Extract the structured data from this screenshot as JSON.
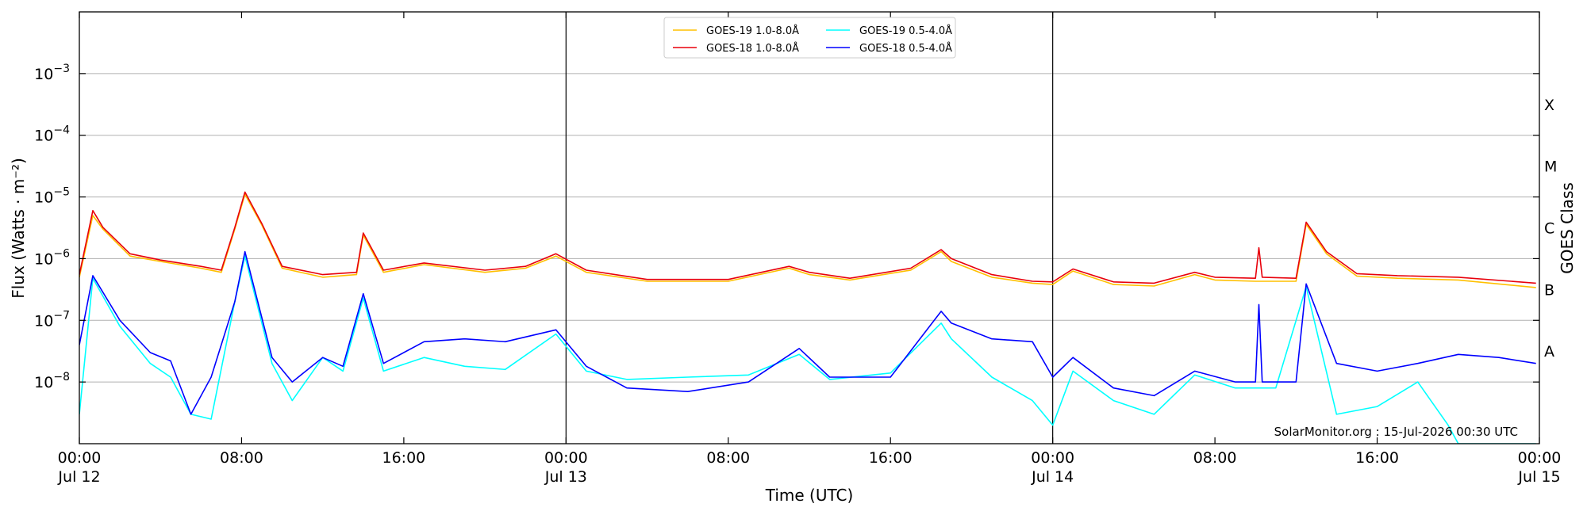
{
  "chart_data": {
    "type": "line",
    "title": "",
    "xlabel": "Time (UTC)",
    "ylabel": "Flux (Watts · m⁻²)",
    "y2label": "GOES Class",
    "yscale": "log",
    "ylim": [
      1e-09,
      0.01
    ],
    "xlim": [
      "2026-07-12T00:00",
      "2026-07-15T00:00"
    ],
    "grid": "horizontal",
    "legend_position": "top-center",
    "x_ticks": [
      {
        "time": "2026-07-12T00:00",
        "label": "00:00",
        "sublabel": "Jul 12"
      },
      {
        "time": "2026-07-12T08:00",
        "label": "08:00",
        "sublabel": ""
      },
      {
        "time": "2026-07-12T16:00",
        "label": "16:00",
        "sublabel": ""
      },
      {
        "time": "2026-07-13T00:00",
        "label": "00:00",
        "sublabel": "Jul 13"
      },
      {
        "time": "2026-07-13T08:00",
        "label": "08:00",
        "sublabel": ""
      },
      {
        "time": "2026-07-13T16:00",
        "label": "16:00",
        "sublabel": ""
      },
      {
        "time": "2026-07-14T00:00",
        "label": "00:00",
        "sublabel": "Jul 14"
      },
      {
        "time": "2026-07-14T08:00",
        "label": "08:00",
        "sublabel": ""
      },
      {
        "time": "2026-07-14T16:00",
        "label": "16:00",
        "sublabel": ""
      },
      {
        "time": "2026-07-15T00:00",
        "label": "00:00",
        "sublabel": "Jul 15"
      }
    ],
    "day_boundaries": [
      "2026-07-13T00:00",
      "2026-07-14T00:00"
    ],
    "y_ticks": [
      {
        "value": 1e-08,
        "base": "10",
        "exp": "−8"
      },
      {
        "value": 1e-07,
        "base": "10",
        "exp": "−7"
      },
      {
        "value": 1e-06,
        "base": "10",
        "exp": "−6"
      },
      {
        "value": 1e-05,
        "base": "10",
        "exp": "−5"
      },
      {
        "value": 0.0001,
        "base": "10",
        "exp": "−4"
      },
      {
        "value": 0.001,
        "base": "10",
        "exp": "−3"
      }
    ],
    "goes_classes": [
      {
        "label": "A",
        "value": 1e-08
      },
      {
        "label": "B",
        "value": 1e-07
      },
      {
        "label": "C",
        "value": 1e-06
      },
      {
        "label": "M",
        "value": 1e-05
      },
      {
        "label": "X",
        "value": 0.0001
      }
    ],
    "credit": "SolarMonitor.org : 15-Jul-2026 00:30 UTC",
    "series": [
      {
        "name": "GOES-19 1.0-8.0Å",
        "color": "#ffc000",
        "x": [
          "2026-07-12T00:00",
          "2026-07-12T00:40",
          "2026-07-12T01:10",
          "2026-07-12T02:30",
          "2026-07-12T04:00",
          "2026-07-12T06:00",
          "2026-07-12T07:00",
          "2026-07-12T07:40",
          "2026-07-12T08:10",
          "2026-07-12T09:00",
          "2026-07-12T10:00",
          "2026-07-12T12:00",
          "2026-07-12T13:40",
          "2026-07-12T14:00",
          "2026-07-12T15:00",
          "2026-07-12T17:00",
          "2026-07-12T20:00",
          "2026-07-12T22:00",
          "2026-07-12T23:30",
          "2026-07-13T01:00",
          "2026-07-13T04:00",
          "2026-07-13T08:00",
          "2026-07-13T11:00",
          "2026-07-13T12:00",
          "2026-07-13T14:00",
          "2026-07-13T17:00",
          "2026-07-13T18:30",
          "2026-07-13T19:00",
          "2026-07-13T21:00",
          "2026-07-13T23:00",
          "2026-07-14T00:00",
          "2026-07-14T01:00",
          "2026-07-14T03:00",
          "2026-07-14T05:00",
          "2026-07-14T07:00",
          "2026-07-14T08:00",
          "2026-07-14T10:00",
          "2026-07-14T12:00",
          "2026-07-14T12:30",
          "2026-07-14T13:30",
          "2026-07-14T15:00",
          "2026-07-14T17:00",
          "2026-07-14T20:00",
          "2026-07-14T23:50"
        ],
        "y": [
          5e-07,
          5e-06,
          3e-06,
          1.1e-06,
          9e-07,
          7e-07,
          6e-07,
          3e-06,
          1.1e-05,
          3.5e-06,
          7e-07,
          5e-07,
          5.5e-07,
          2.4e-06,
          6e-07,
          8e-07,
          6e-07,
          7e-07,
          1.1e-06,
          6e-07,
          4.3e-07,
          4.3e-07,
          7e-07,
          5.5e-07,
          4.5e-07,
          6.5e-07,
          1.3e-06,
          9e-07,
          5e-07,
          4e-07,
          3.8e-07,
          6.3e-07,
          3.8e-07,
          3.6e-07,
          5.5e-07,
          4.5e-07,
          4.3e-07,
          4.3e-07,
          3.6e-06,
          1.2e-06,
          5.2e-07,
          4.8e-07,
          4.5e-07,
          3.4e-07
        ]
      },
      {
        "name": "GOES-18 1.0-8.0Å",
        "color": "#e8000b",
        "x": [
          "2026-07-12T00:00",
          "2026-07-12T00:40",
          "2026-07-12T01:10",
          "2026-07-12T02:30",
          "2026-07-12T04:00",
          "2026-07-12T06:00",
          "2026-07-12T07:00",
          "2026-07-12T07:40",
          "2026-07-12T08:10",
          "2026-07-12T09:00",
          "2026-07-12T10:00",
          "2026-07-12T12:00",
          "2026-07-12T13:40",
          "2026-07-12T14:00",
          "2026-07-12T15:00",
          "2026-07-12T17:00",
          "2026-07-12T20:00",
          "2026-07-12T22:00",
          "2026-07-12T23:30",
          "2026-07-13T01:00",
          "2026-07-13T04:00",
          "2026-07-13T08:00",
          "2026-07-13T11:00",
          "2026-07-13T12:00",
          "2026-07-13T14:00",
          "2026-07-13T17:00",
          "2026-07-13T18:30",
          "2026-07-13T19:00",
          "2026-07-13T21:00",
          "2026-07-13T23:00",
          "2026-07-14T00:00",
          "2026-07-14T01:00",
          "2026-07-14T03:00",
          "2026-07-14T05:00",
          "2026-07-14T07:00",
          "2026-07-14T08:00",
          "2026-07-14T10:00",
          "2026-07-14T10:10",
          "2026-07-14T10:20",
          "2026-07-14T12:00",
          "2026-07-14T12:30",
          "2026-07-14T13:30",
          "2026-07-14T15:00",
          "2026-07-14T17:00",
          "2026-07-14T20:00",
          "2026-07-14T23:50"
        ],
        "y": [
          5.5e-07,
          6e-06,
          3.2e-06,
          1.2e-06,
          9.5e-07,
          7.5e-07,
          6.5e-07,
          3.2e-06,
          1.2e-05,
          3.7e-06,
          7.5e-07,
          5.5e-07,
          6e-07,
          2.6e-06,
          6.5e-07,
          8.5e-07,
          6.5e-07,
          7.5e-07,
          1.2e-06,
          6.5e-07,
          4.6e-07,
          4.6e-07,
          7.5e-07,
          6e-07,
          4.8e-07,
          7e-07,
          1.4e-06,
          1e-06,
          5.5e-07,
          4.3e-07,
          4.2e-07,
          6.8e-07,
          4.2e-07,
          4e-07,
          6e-07,
          5e-07,
          4.8e-07,
          1.5e-06,
          5e-07,
          4.8e-07,
          3.9e-06,
          1.3e-06,
          5.7e-07,
          5.3e-07,
          5e-07,
          4e-07
        ]
      },
      {
        "name": "GOES-19 0.5-4.0Å",
        "color": "#00ffff",
        "x": [
          "2026-07-12T00:00",
          "2026-07-12T00:40",
          "2026-07-12T02:00",
          "2026-07-12T03:30",
          "2026-07-12T04:30",
          "2026-07-12T05:30",
          "2026-07-12T06:30",
          "2026-07-12T07:40",
          "2026-07-12T08:10",
          "2026-07-12T09:30",
          "2026-07-12T10:30",
          "2026-07-12T12:00",
          "2026-07-12T13:00",
          "2026-07-12T14:00",
          "2026-07-12T15:00",
          "2026-07-12T17:00",
          "2026-07-12T19:00",
          "2026-07-12T21:00",
          "2026-07-12T23:30",
          "2026-07-13T01:00",
          "2026-07-13T03:00",
          "2026-07-13T06:00",
          "2026-07-13T09:00",
          "2026-07-13T11:30",
          "2026-07-13T13:00",
          "2026-07-13T16:00",
          "2026-07-13T18:30",
          "2026-07-13T19:00",
          "2026-07-13T21:00",
          "2026-07-13T23:00",
          "2026-07-14T00:00",
          "2026-07-14T01:00",
          "2026-07-14T03:00",
          "2026-07-14T05:00",
          "2026-07-14T07:00",
          "2026-07-14T09:00",
          "2026-07-14T11:00",
          "2026-07-14T12:30",
          "2026-07-14T14:00",
          "2026-07-14T16:00",
          "2026-07-14T18:00",
          "2026-07-14T19:30",
          "2026-07-14T20:00",
          "2026-07-14T22:00",
          "2026-07-14T23:50"
        ],
        "y": [
          3e-09,
          4.8e-07,
          8e-08,
          2e-08,
          1.2e-08,
          3e-09,
          2.5e-09,
          2e-07,
          1.1e-06,
          2e-08,
          5e-09,
          2.5e-08,
          1.5e-08,
          2.3e-07,
          1.5e-08,
          2.5e-08,
          1.8e-08,
          1.6e-08,
          6e-08,
          1.5e-08,
          1.1e-08,
          1.2e-08,
          1.3e-08,
          2.8e-08,
          1.1e-08,
          1.4e-08,
          9e-08,
          5e-08,
          1.2e-08,
          5e-09,
          2e-09,
          1.5e-08,
          5e-09,
          3e-09,
          1.3e-08,
          8e-09,
          8e-09,
          3.5e-07,
          3e-09,
          4e-09,
          1e-08,
          2e-09,
          1e-09,
          1e-09,
          1e-09
        ]
      },
      {
        "name": "GOES-18 0.5-4.0Å",
        "color": "#0000ff",
        "x": [
          "2026-07-12T00:00",
          "2026-07-12T00:40",
          "2026-07-12T02:00",
          "2026-07-12T03:30",
          "2026-07-12T04:30",
          "2026-07-12T05:30",
          "2026-07-12T06:30",
          "2026-07-12T07:40",
          "2026-07-12T08:10",
          "2026-07-12T09:30",
          "2026-07-12T10:30",
          "2026-07-12T12:00",
          "2026-07-12T13:00",
          "2026-07-12T14:00",
          "2026-07-12T15:00",
          "2026-07-12T17:00",
          "2026-07-12T19:00",
          "2026-07-12T21:00",
          "2026-07-12T23:30",
          "2026-07-13T01:00",
          "2026-07-13T03:00",
          "2026-07-13T06:00",
          "2026-07-13T09:00",
          "2026-07-13T11:30",
          "2026-07-13T13:00",
          "2026-07-13T16:00",
          "2026-07-13T18:30",
          "2026-07-13T19:00",
          "2026-07-13T21:00",
          "2026-07-13T23:00",
          "2026-07-14T00:00",
          "2026-07-14T01:00",
          "2026-07-14T03:00",
          "2026-07-14T05:00",
          "2026-07-14T07:00",
          "2026-07-14T09:00",
          "2026-07-14T10:00",
          "2026-07-14T10:10",
          "2026-07-14T10:20",
          "2026-07-14T12:00",
          "2026-07-14T12:30",
          "2026-07-14T14:00",
          "2026-07-14T16:00",
          "2026-07-14T18:00",
          "2026-07-14T20:00",
          "2026-07-14T22:00",
          "2026-07-14T23:50"
        ],
        "y": [
          4e-08,
          5.3e-07,
          1e-07,
          3e-08,
          2.2e-08,
          3e-09,
          1.2e-08,
          2e-07,
          1.3e-06,
          2.5e-08,
          1e-08,
          2.5e-08,
          1.8e-08,
          2.7e-07,
          2e-08,
          4.5e-08,
          5e-08,
          4.5e-08,
          7e-08,
          1.8e-08,
          8e-09,
          7e-09,
          1e-08,
          3.5e-08,
          1.2e-08,
          1.2e-08,
          1.4e-07,
          9e-08,
          5e-08,
          4.5e-08,
          1.2e-08,
          2.5e-08,
          8e-09,
          6e-09,
          1.5e-08,
          1e-08,
          1e-08,
          1.8e-07,
          1e-08,
          1e-08,
          3.9e-07,
          2e-08,
          1.5e-08,
          2e-08,
          2.8e-08,
          2.5e-08,
          2e-08
        ]
      }
    ]
  }
}
